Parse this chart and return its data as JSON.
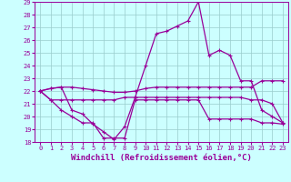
{
  "xlabel": "Windchill (Refroidissement éolien,°C)",
  "x": [
    0,
    1,
    2,
    3,
    4,
    5,
    6,
    7,
    8,
    9,
    10,
    11,
    12,
    13,
    14,
    15,
    16,
    17,
    18,
    19,
    20,
    21,
    22,
    23
  ],
  "line1": [
    22.0,
    22.2,
    22.3,
    20.5,
    20.2,
    19.4,
    18.8,
    18.2,
    19.2,
    21.5,
    24.0,
    26.5,
    26.7,
    27.1,
    27.5,
    29.0,
    24.8,
    25.2,
    24.8,
    22.8,
    22.8,
    20.5,
    20.0,
    19.5
  ],
  "line2": [
    22.0,
    22.2,
    22.3,
    22.3,
    22.2,
    22.1,
    22.0,
    21.9,
    21.9,
    22.0,
    22.2,
    22.3,
    22.3,
    22.3,
    22.3,
    22.3,
    22.3,
    22.3,
    22.3,
    22.3,
    22.3,
    22.8,
    22.8,
    22.8
  ],
  "line3": [
    22.0,
    21.3,
    21.3,
    21.3,
    21.3,
    21.3,
    21.3,
    21.3,
    21.5,
    21.5,
    21.5,
    21.5,
    21.5,
    21.5,
    21.5,
    21.5,
    21.5,
    21.5,
    21.5,
    21.5,
    21.3,
    21.3,
    21.0,
    19.5
  ],
  "line4": [
    22.0,
    21.3,
    20.5,
    20.0,
    19.5,
    19.5,
    18.3,
    18.3,
    18.3,
    21.3,
    21.3,
    21.3,
    21.3,
    21.3,
    21.3,
    21.3,
    19.8,
    19.8,
    19.8,
    19.8,
    19.8,
    19.5,
    19.5,
    19.4
  ],
  "ylim": [
    18,
    29
  ],
  "yticks": [
    18,
    19,
    20,
    21,
    22,
    23,
    24,
    25,
    26,
    27,
    28,
    29
  ],
  "xticks": [
    0,
    1,
    2,
    3,
    4,
    5,
    6,
    7,
    8,
    9,
    10,
    11,
    12,
    13,
    14,
    15,
    16,
    17,
    18,
    19,
    20,
    21,
    22,
    23
  ],
  "line_color": "#990099",
  "bg_color": "#ccffff",
  "grid_color": "#99cccc",
  "marker": "+",
  "markersize": 3,
  "linewidth": 0.9,
  "tick_fontsize": 5,
  "xlabel_fontsize": 6.5
}
